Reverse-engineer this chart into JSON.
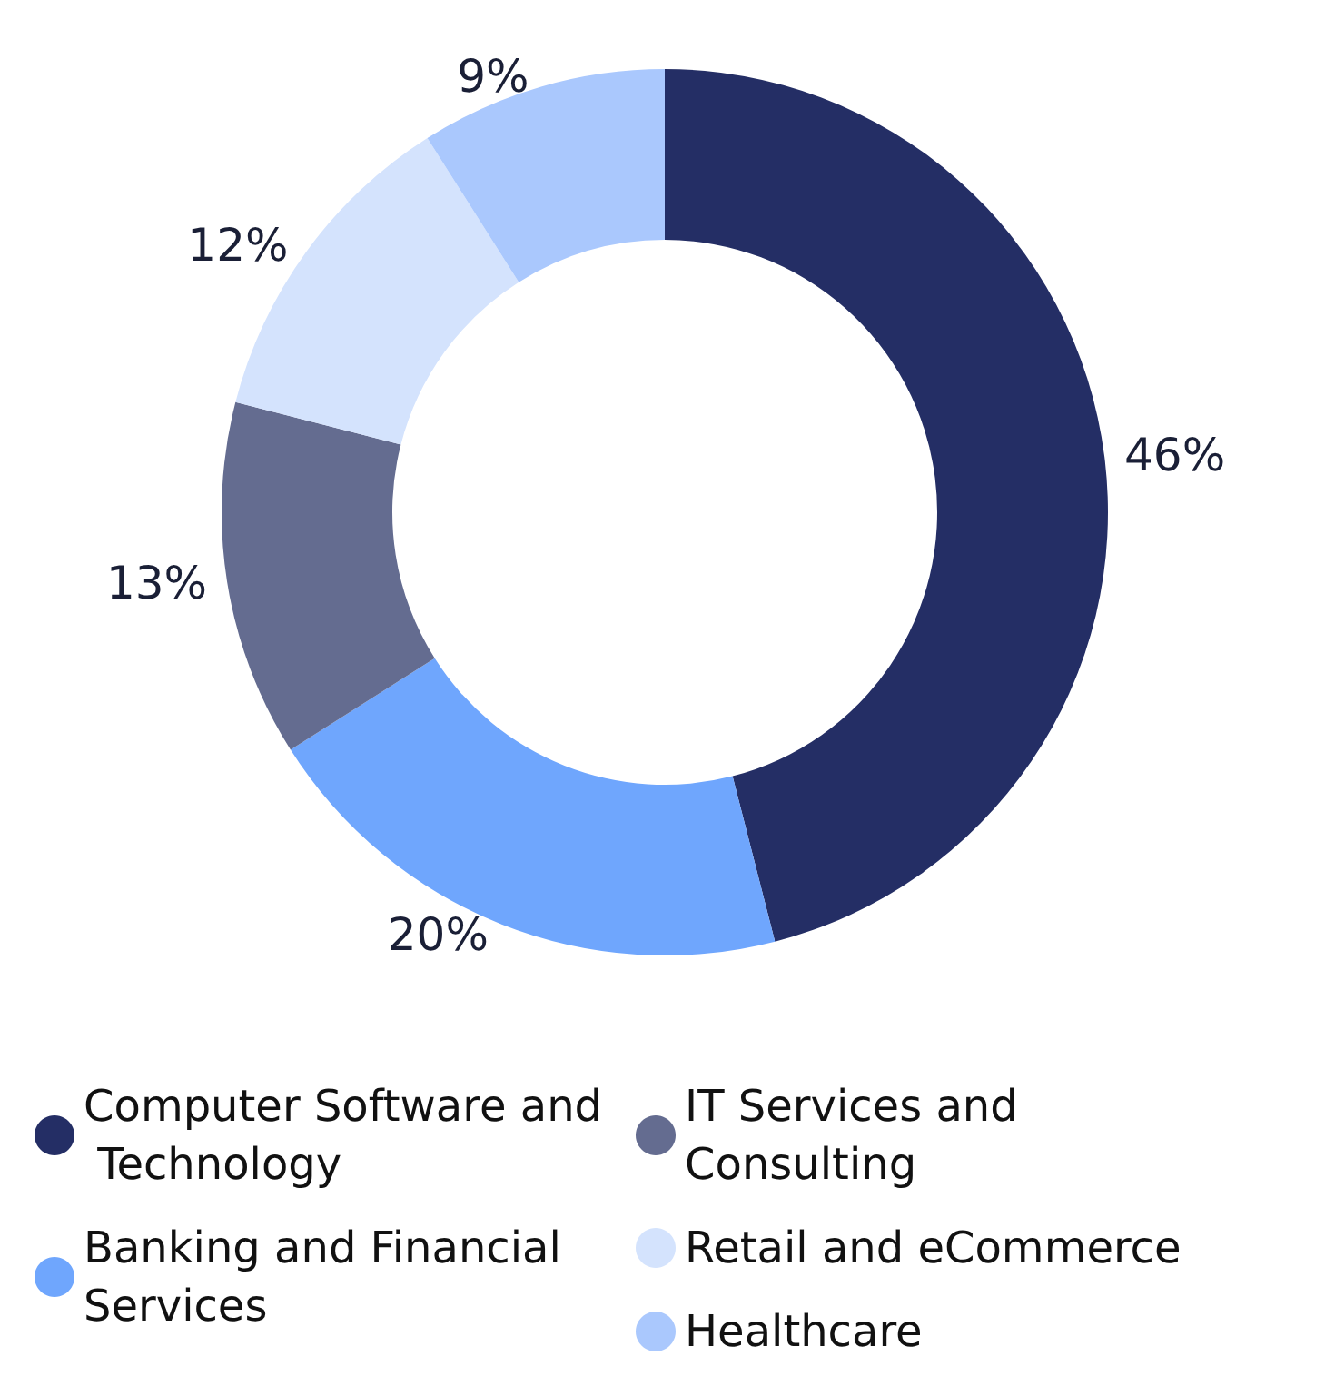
{
  "chart_data": {
    "type": "donut",
    "categories": [
      "Computer Software and Technology",
      "Banking and Financial Services",
      "IT Services and Consulting",
      "Retail and eCommerce",
      "Healthcare"
    ],
    "values": [
      46,
      20,
      13,
      12,
      9
    ],
    "colors": [
      "#242e65",
      "#6fa6fd",
      "#646c90",
      "#d4e3fd",
      "#aac8fd"
    ],
    "value_labels": [
      "46%",
      "20%",
      "13%",
      "12%",
      "9%"
    ],
    "legend": "bottom"
  }
}
